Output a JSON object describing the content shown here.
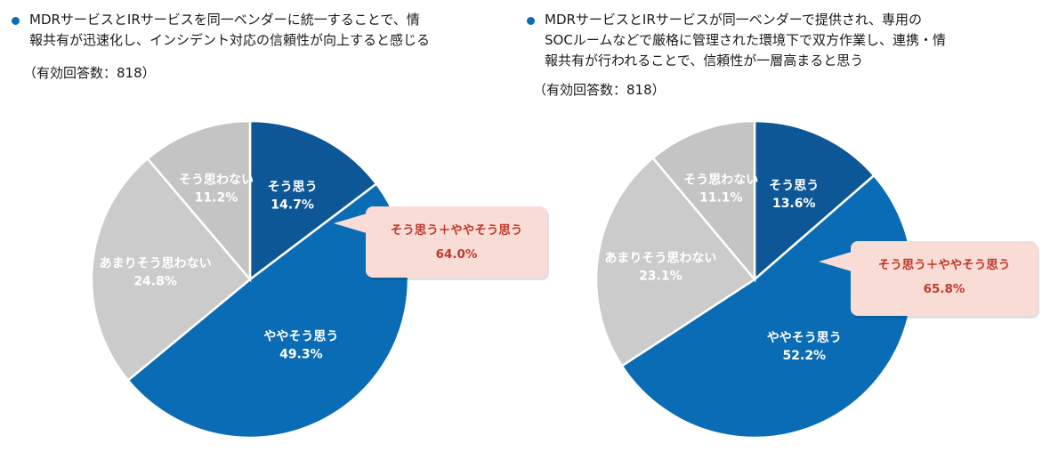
{
  "colors": {
    "dark_blue": "#0e5797",
    "mid_blue": "#0a6cb4",
    "light_gray": "#cbcbcb",
    "mid_gray": "#c4c4c4",
    "callout_bg": "#fadcd6",
    "callout_text": "#c0392b",
    "bullet": "#0a6cb4"
  },
  "panels": [
    {
      "question_lines": [
        "MDRサービスとIRサービスを同一ベンダーに統一することで、情",
        "報共有が迅速化し、インシデント対応の信頼性が向上すると感じる"
      ],
      "n_label": "（有効回答数：818）"
    },
    {
      "question_lines": [
        "MDRサービスとIRサービスが同一ベンダーで提供され、専用の",
        "SOCルームなどで厳格に管理された環境下で双方作業し、連携・情",
        "報共有が行われることで、信頼性が一層高まると思う"
      ],
      "n_label": "（有効回答数：818）"
    }
  ],
  "chart_data": [
    {
      "type": "pie",
      "categories": [
        "そう思う",
        "ややそう思う",
        "あまりそう思わない",
        "そう思わない"
      ],
      "values": [
        14.7,
        49.3,
        24.8,
        11.2
      ],
      "value_labels": [
        "14.7%",
        "49.3%",
        "24.8%",
        "11.2%"
      ],
      "slice_colors": [
        "#0e5797",
        "#0a6cb4",
        "#cbcbcb",
        "#c4c4c4"
      ],
      "label_colors": [
        "#ffffff",
        "#ffffff",
        "#ffffff",
        "#ffffff"
      ],
      "start": "12 o'clock",
      "direction": "clockwise",
      "annotation": {
        "label": "そう思う＋ややそう思う",
        "value": "64.0%"
      }
    },
    {
      "type": "pie",
      "categories": [
        "そう思う",
        "ややそう思う",
        "あまりそう思わない",
        "そう思わない"
      ],
      "values": [
        13.6,
        52.2,
        23.1,
        11.1
      ],
      "value_labels": [
        "13.6%",
        "52.2%",
        "23.1%",
        "11.1%"
      ],
      "slice_colors": [
        "#0e5797",
        "#0a6cb4",
        "#cbcbcb",
        "#c4c4c4"
      ],
      "label_colors": [
        "#ffffff",
        "#ffffff",
        "#ffffff",
        "#ffffff"
      ],
      "start": "12 o'clock",
      "direction": "clockwise",
      "annotation": {
        "label": "そう思う＋ややそう思う",
        "value": "65.8%"
      }
    }
  ]
}
